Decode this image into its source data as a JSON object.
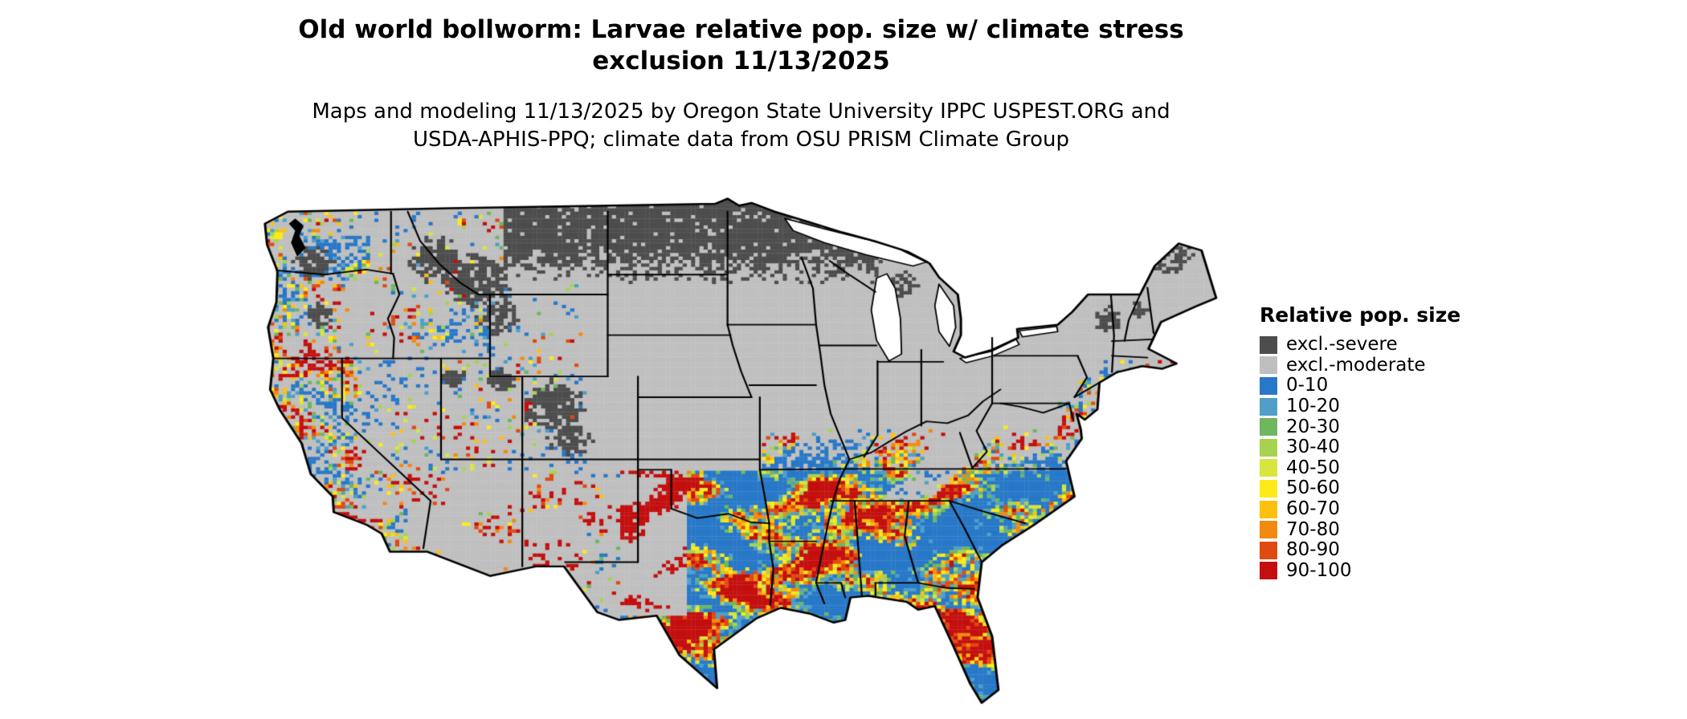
{
  "title": {
    "line1": "Old world bollworm: Larvae relative pop. size w/ climate stress",
    "line2": "exclusion 11/13/2025"
  },
  "subtitle": {
    "line1": "Maps and modeling 11/13/2025 by Oregon State University IPPC USPEST.ORG and",
    "line2": "USDA-APHIS-PPQ; climate data from OSU PRISM Climate Group"
  },
  "map": {
    "type": "raster-choropleth",
    "area": "Continental United States",
    "border_color": "#000000",
    "background_color": "#ffffff"
  },
  "legend": {
    "title": "Relative pop. size",
    "items": [
      {
        "key": "sev",
        "label": "excl.-severe",
        "color": "#4d4d4d"
      },
      {
        "key": "mod",
        "label": "excl.-moderate",
        "color": "#bfbfbf"
      },
      {
        "key": "b0",
        "label": "0-10",
        "color": "#2878c8"
      },
      {
        "key": "b10",
        "label": "10-20",
        "color": "#4f9fc8"
      },
      {
        "key": "b20",
        "label": "20-30",
        "color": "#6db75f"
      },
      {
        "key": "b30",
        "label": "30-40",
        "color": "#a6d34f"
      },
      {
        "key": "b40",
        "label": "40-50",
        "color": "#d8e53c"
      },
      {
        "key": "b50",
        "label": "50-60",
        "color": "#fdea18"
      },
      {
        "key": "b60",
        "label": "60-70",
        "color": "#fcc00d"
      },
      {
        "key": "b70",
        "label": "70-80",
        "color": "#f28a10"
      },
      {
        "key": "b80",
        "label": "80-90",
        "color": "#e04a10"
      },
      {
        "key": "b90",
        "label": "90-100",
        "color": "#c40f0f"
      }
    ]
  }
}
